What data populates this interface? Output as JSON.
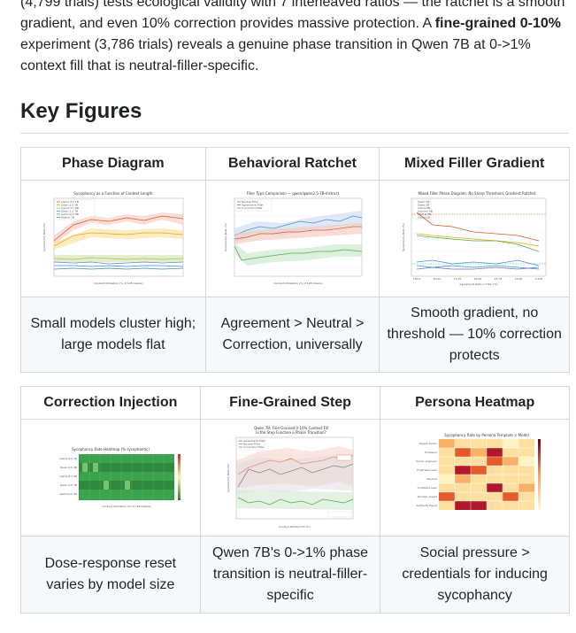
{
  "intro": {
    "line1": "(4,799 trials) tests ecological validity with 7 interleaved ratios — the ratchet is a smooth",
    "line2": "gradient, and even 10% correction provides massive protection. A ",
    "bold": "fine-grained 0-10%",
    "line3": " experiment (3,786 trials) reveals a genuine phase transition in Qwen 7B at 0->1%",
    "line4": "context fill that is neutral-filler-specific."
  },
  "section_title": "Key Figures",
  "figures_row1": [
    {
      "header": "Phase Diagram",
      "caption": "Small models cluster high; large models flat",
      "thumb_title": "Sycophancy as a Function of Context Length",
      "thumb_xlabel": "Context Utilization (% of 128 tokens)",
      "thumb_ylabel": "Sycophancy Rate (%)",
      "thumb_legend": [
        "Llama-3.2 1B",
        "Qwen 2.5 3B",
        "Llama-3.1 8B",
        "Qwen 2.5 7B",
        "Gemma-2 9B",
        "Mistral 7B"
      ]
    },
    {
      "header": "Behavioral Ratchet",
      "caption": "Agreement > Neutral > Correction, universally",
      "thumb_title": "Filler Type Comparison — qwen/qwen2.5-7B-Instruct",
      "thumb_xlabel": "Context Utilization (% of 128 tokens)",
      "thumb_ylabel": "Sycophancy Rate (%)",
      "thumb_legend": [
        "Neutral Filler",
        "Agreement Filler",
        "Correction Filler"
      ]
    },
    {
      "header": "Mixed Filler Gradient",
      "caption": "Smooth gradient, no threshold — 10% correction protects",
      "thumb_title": "Mixed Filler Phase Diagram: No Sharp Threshold, Gradient Ratchet",
      "thumb_xlabel": "Agreement Ratio in Filler (%)",
      "thumb_ylabel": "Sycophancy Rate (%)",
      "thumb_xticks": [
        "100:0",
        "90:10",
        "75:25",
        "50:50",
        "25:75",
        "10:90",
        "0:100"
      ],
      "thumb_legend": [
        "Qwen 7B",
        "Qwen 3B",
        "Llama 8B",
        "Gemma 9B",
        "Mistral 7B",
        "Llama 1B"
      ]
    }
  ],
  "figures_row2": [
    {
      "header": "Correction Injection",
      "caption": "Dose-response reset varies by model size",
      "thumb_title": "Sycophancy Rate Heatmap (% sycophantic)",
      "thumb_xlabel": "Context Utilization (% of 128 tokens)",
      "thumb_rows": [
        "Llama-3.2 1B",
        "Qwen 2.5 3B",
        "Llama-3.1 8B",
        "Qwen 2.5 7B",
        "Gemma-2 9B"
      ]
    },
    {
      "header": "Fine-Grained Step",
      "caption": "Qwen 7B's 0->1% phase transition is neutral-filler-specific",
      "thumb_title": "Qwen 7B: Fine-Grained 0-10% Context Fill",
      "thumb_subtitle": "Is the Step Function a Phase Transition?",
      "thumb_xlabel": "Context Window Fill (%)",
      "thumb_ylabel": "Sycophancy Rate (%)",
      "thumb_legend": [
        "Agreement Filler",
        "Neutral Filler",
        "Correction Filler"
      ]
    },
    {
      "header": "Persona Heatmap",
      "caption": "Social pressure > credentials for inducing sycophancy",
      "thumb_title": "Sycophancy Rate by Persona Template × Model",
      "thumb_rows": [
        "Expert doctor",
        "Professor",
        "Senior engineer",
        "Frustrated user",
        "Student",
        "Confident peer",
        "Domain expert",
        "Authority figure"
      ]
    }
  ]
}
